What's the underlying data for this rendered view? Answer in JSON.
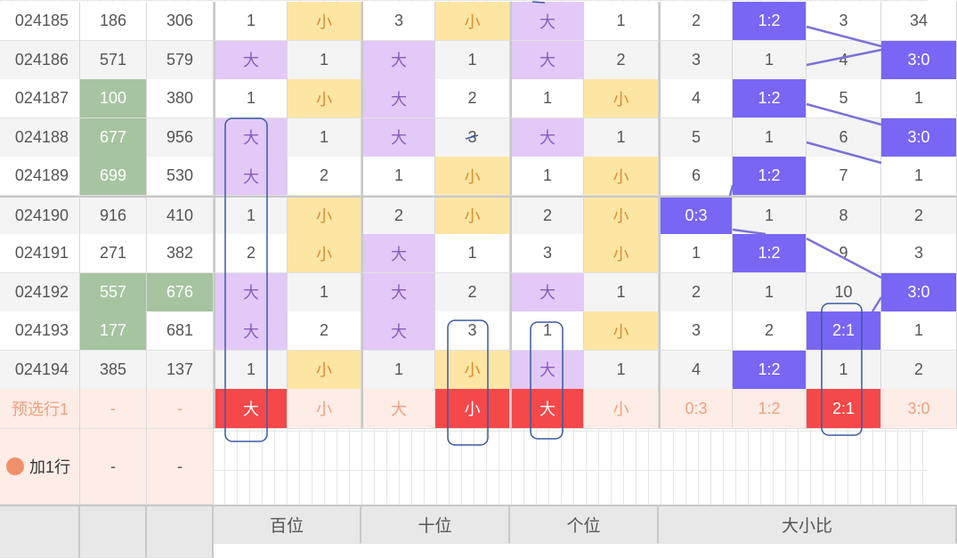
{
  "colors": {
    "green": "#a6c4a0",
    "light_purple": "#e2c9f7",
    "yellow": "#fde6a3",
    "strong_purple": "#7866f5",
    "red": "#f4484a",
    "peach": "#fdede6",
    "peach_text": "#f0a080",
    "line": "#7b72d6",
    "circle": "#3a5aa0"
  },
  "rows": [
    {
      "period": "024185",
      "a": "186",
      "b": "306",
      "cells": [
        "1",
        "小",
        "3",
        "小",
        "大",
        "1",
        "2",
        "1:2",
        "3",
        "34"
      ],
      "green": []
    },
    {
      "period": "024186",
      "a": "571",
      "b": "579",
      "cells": [
        "大",
        "1",
        "大",
        "1",
        "大",
        "2",
        "3",
        "1",
        "4",
        "3:0"
      ],
      "green": []
    },
    {
      "period": "024187",
      "a": "100",
      "b": "380",
      "cells": [
        "1",
        "小",
        "大",
        "2",
        "1",
        "小",
        "4",
        "1:2",
        "5",
        "1"
      ],
      "green": [
        "a"
      ]
    },
    {
      "period": "024188",
      "a": "677",
      "b": "956",
      "cells": [
        "大",
        "1",
        "大",
        "3",
        "大",
        "1",
        "5",
        "1",
        "6",
        "3:0"
      ],
      "green": [
        "a"
      ]
    },
    {
      "period": "024189",
      "a": "699",
      "b": "530",
      "cells": [
        "大",
        "2",
        "1",
        "小",
        "1",
        "小",
        "6",
        "1:2",
        "7",
        "1"
      ],
      "green": [
        "a"
      ]
    },
    {
      "period": "024190",
      "a": "916",
      "b": "410",
      "cells": [
        "1",
        "小",
        "2",
        "小",
        "2",
        "小",
        "0:3",
        "1",
        "8",
        "2"
      ],
      "green": []
    },
    {
      "period": "024191",
      "a": "271",
      "b": "382",
      "cells": [
        "2",
        "小",
        "大",
        "1",
        "3",
        "小",
        "1",
        "1:2",
        "9",
        "3"
      ],
      "green": []
    },
    {
      "period": "024192",
      "a": "557",
      "b": "676",
      "cells": [
        "大",
        "1",
        "大",
        "2",
        "大",
        "1",
        "2",
        "1",
        "10",
        "3:0"
      ],
      "green": [
        "a",
        "b"
      ]
    },
    {
      "period": "024193",
      "a": "177",
      "b": "681",
      "cells": [
        "大",
        "2",
        "大",
        "3",
        "1",
        "小",
        "3",
        "2",
        "2:1",
        "1"
      ],
      "green": [
        "a"
      ]
    },
    {
      "period": "024194",
      "a": "385",
      "b": "137",
      "cells": [
        "1",
        "小",
        "1",
        "小",
        "大",
        "1",
        "4",
        "1:2",
        "1",
        "2"
      ],
      "green": []
    }
  ],
  "strong_cells": [
    [
      0,
      7
    ],
    [
      1,
      9
    ],
    [
      2,
      7
    ],
    [
      3,
      9
    ],
    [
      4,
      7
    ],
    [
      5,
      6
    ],
    [
      6,
      7
    ],
    [
      7,
      9
    ],
    [
      8,
      8
    ],
    [
      9,
      7
    ]
  ],
  "predict": {
    "label": "预选行1",
    "a": "-",
    "b": "-",
    "cells": [
      "大",
      "小",
      "大",
      "小",
      "大",
      "小",
      "0:3",
      "1:2",
      "2:1",
      "3:0"
    ],
    "selected": [
      0,
      3,
      4,
      8
    ]
  },
  "add_row": {
    "label": "加1行",
    "a": "-",
    "b": "-"
  },
  "footer": {
    "groups": [
      "百位",
      "十位",
      "个位",
      "大小比"
    ]
  }
}
